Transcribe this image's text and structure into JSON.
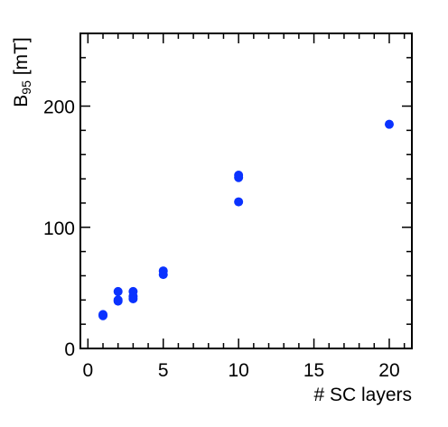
{
  "chart_data": {
    "type": "scatter",
    "title": "",
    "xlabel": "# SC layers",
    "ylabel": {
      "base": "B",
      "subscript": "95",
      "rest": " [mT]"
    },
    "xlim": [
      -0.5,
      21.5
    ],
    "ylim": [
      0,
      260
    ],
    "xticks": [
      0,
      5,
      10,
      15,
      20
    ],
    "yticks": [
      0,
      100,
      200
    ],
    "x_minor_step": 1,
    "y_minor_step": 20,
    "grid": false,
    "marker_color": "#0a32ff",
    "series": [
      {
        "points": [
          {
            "x": 1,
            "y": 27
          },
          {
            "x": 1,
            "y": 28
          },
          {
            "x": 2,
            "y": 39
          },
          {
            "x": 2,
            "y": 40
          },
          {
            "x": 2,
            "y": 47
          },
          {
            "x": 3,
            "y": 41
          },
          {
            "x": 3,
            "y": 43
          },
          {
            "x": 3,
            "y": 47
          },
          {
            "x": 5,
            "y": 61
          },
          {
            "x": 5,
            "y": 64
          },
          {
            "x": 10,
            "y": 121
          },
          {
            "x": 10,
            "y": 141
          },
          {
            "x": 10,
            "y": 143
          },
          {
            "x": 20,
            "y": 185
          }
        ]
      }
    ]
  }
}
